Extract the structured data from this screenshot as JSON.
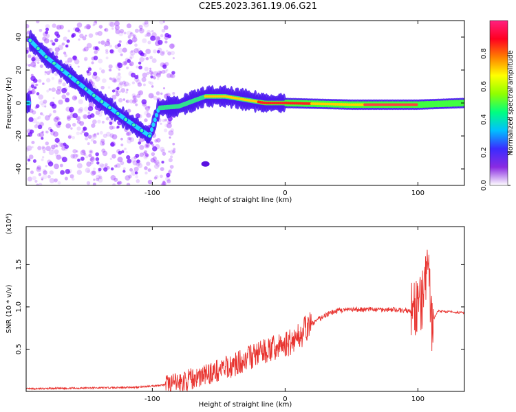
{
  "title": "C2E5.2023.361.19.06.G21",
  "chart_data": [
    {
      "type": "heatmap",
      "xlabel": "Height of straight line (km)",
      "ylabel": "Frequency (Hz)",
      "xlim": [
        -195,
        135
      ],
      "ylim": [
        -50,
        50
      ],
      "x_ticks": [
        -100,
        0,
        100
      ],
      "y_ticks": [
        -40,
        -20,
        0,
        20,
        40
      ],
      "colorbar": {
        "label": "Normalized spectral amplitude",
        "range": [
          0,
          1
        ],
        "ticks": [
          "0.0",
          "0.2",
          "0.4",
          "0.6",
          "0.8"
        ],
        "colors": [
          "#ffffff",
          "#8a2be2",
          "#3b2bff",
          "#00c0ff",
          "#00ff80",
          "#90ff00",
          "#ffff00",
          "#ff8000",
          "#ff0020",
          "#ff2080"
        ]
      },
      "ridge": [
        {
          "x": -192,
          "y": 38
        },
        {
          "x": -180,
          "y": 28
        },
        {
          "x": -160,
          "y": 15
        },
        {
          "x": -140,
          "y": 2
        },
        {
          "x": -120,
          "y": -10
        },
        {
          "x": -102,
          "y": -20
        },
        {
          "x": -95,
          "y": -3
        },
        {
          "x": -80,
          "y": -2
        },
        {
          "x": -60,
          "y": 4
        },
        {
          "x": -45,
          "y": 4
        },
        {
          "x": -30,
          "y": 2
        },
        {
          "x": -15,
          "y": 0
        },
        {
          "x": 0,
          "y": 0
        },
        {
          "x": 50,
          "y": -1
        },
        {
          "x": 100,
          "y": -1
        },
        {
          "x": 135,
          "y": 0
        }
      ]
    },
    {
      "type": "line",
      "xlabel": "Height of straight line (km)",
      "ylabel": "SNR (10 * v/v)",
      "scale_note": "(x10⁴)",
      "xlim": [
        -195,
        135
      ],
      "ylim": [
        0,
        1.95
      ],
      "x_ticks": [
        -100,
        0,
        100
      ],
      "y_ticks": [
        "0.5",
        "1.0",
        "1.5"
      ],
      "color": "#e8322e",
      "series": [
        {
          "x": [
            -195,
            -150,
            -110,
            -90,
            -80,
            -70,
            -60,
            -50,
            -40,
            -30,
            -20,
            -10,
            0,
            10,
            20,
            30,
            40,
            60,
            80,
            95,
            100,
            103,
            106,
            108,
            110,
            115,
            125,
            135
          ],
          "y": [
            0.03,
            0.04,
            0.05,
            0.08,
            0.1,
            0.15,
            0.2,
            0.25,
            0.3,
            0.38,
            0.45,
            0.5,
            0.55,
            0.65,
            0.8,
            0.9,
            0.96,
            0.97,
            0.97,
            0.95,
            1.0,
            1.05,
            1.3,
            1.6,
            0.8,
            0.95,
            0.94,
            0.93
          ]
        }
      ]
    }
  ]
}
